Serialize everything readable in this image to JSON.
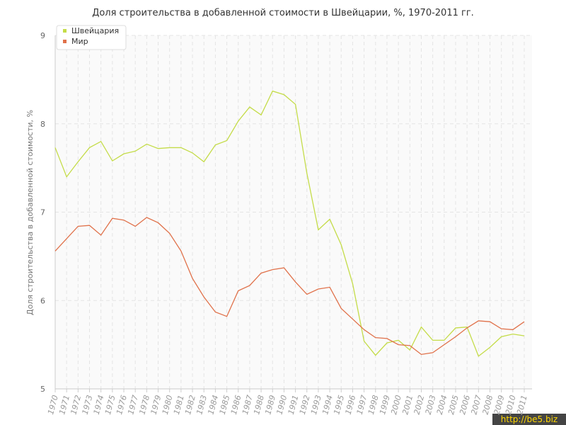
{
  "chart_data": {
    "type": "line",
    "title": "Доля строительства в добавленной стоимости в Швейцарии, %, 1970-2011 гг.",
    "y_label": "Доля строительства в добавленной стоимости, %",
    "categories": [
      "1970",
      "1971",
      "1972",
      "1973",
      "1974",
      "1975",
      "1976",
      "1977",
      "1978",
      "1979",
      "1980",
      "1981",
      "1982",
      "1983",
      "1984",
      "1985",
      "1986",
      "1987",
      "1988",
      "1989",
      "1990",
      "1991",
      "1992",
      "1993",
      "1994",
      "1995",
      "1996",
      "1997",
      "1998",
      "1999",
      "2000",
      "2001",
      "2002",
      "2003",
      "2004",
      "2005",
      "2006",
      "2007",
      "2008",
      "2009",
      "2010",
      "2011"
    ],
    "series": [
      {
        "name": "Швейцария",
        "color": "#c4dc48",
        "values": [
          7.73,
          7.4,
          7.57,
          7.73,
          7.8,
          7.58,
          7.66,
          7.69,
          7.77,
          7.72,
          7.73,
          7.73,
          7.67,
          7.57,
          7.76,
          7.81,
          8.03,
          8.19,
          8.1,
          8.37,
          8.33,
          8.22,
          7.44,
          6.8,
          6.92,
          6.63,
          6.19,
          5.54,
          5.38,
          5.52,
          5.55,
          5.44,
          5.7,
          5.55,
          5.55,
          5.69,
          5.7,
          5.37,
          5.47,
          5.59,
          5.62,
          5.6
        ]
      },
      {
        "name": "Мир",
        "color": "#e0714a",
        "values": [
          6.56,
          6.7,
          6.84,
          6.85,
          6.74,
          6.93,
          6.91,
          6.84,
          6.94,
          6.88,
          6.76,
          6.56,
          6.25,
          6.04,
          5.87,
          5.82,
          6.11,
          6.17,
          6.31,
          6.35,
          6.37,
          6.21,
          6.07,
          6.13,
          6.15,
          5.91,
          5.79,
          5.67,
          5.58,
          5.57,
          5.5,
          5.49,
          5.39,
          5.41,
          5.5,
          5.59,
          5.69,
          5.77,
          5.76,
          5.68,
          5.67,
          5.76
        ]
      }
    ],
    "ylim": [
      5,
      9
    ],
    "yticks": [
      5,
      6,
      7,
      8,
      9
    ],
    "grid": true,
    "legend": "top-left",
    "watermark": "http://be5.biz"
  }
}
